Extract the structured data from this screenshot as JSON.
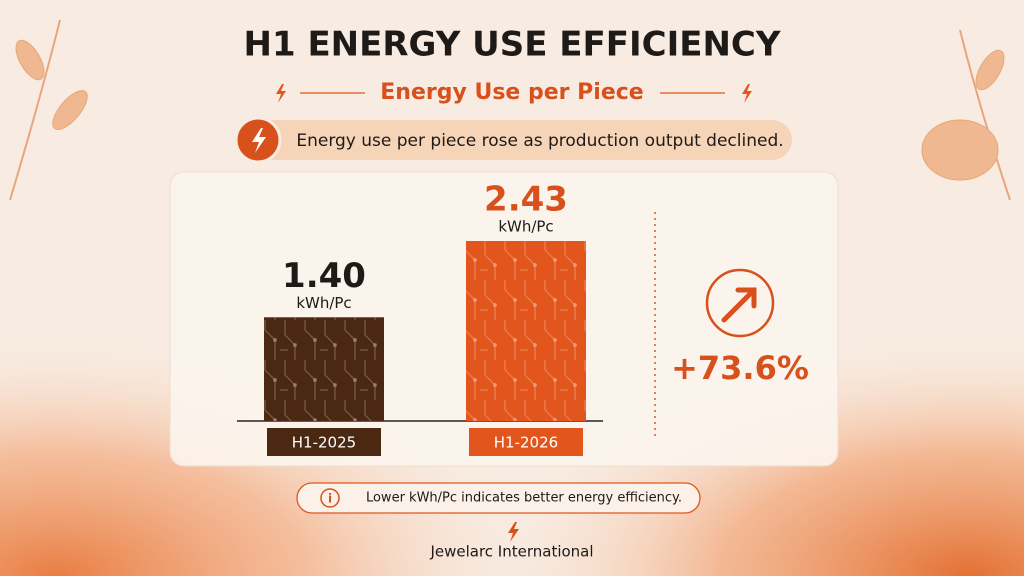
{
  "chart_data": {
    "type": "bar",
    "title": "H1 ENERGY USE EFFICIENCY",
    "subtitle": "Energy Use per Piece",
    "headline": "Energy use per piece rose as production output declined.",
    "categories": [
      "H1-2025",
      "H1-2026"
    ],
    "values": [
      1.4,
      2.43
    ],
    "value_labels": [
      "1.40",
      "2.43"
    ],
    "unit": "kWh/Pc",
    "colors": [
      "#4a2812",
      "#e2561d"
    ],
    "change_label": "+73.6%",
    "note": "Lower kWh/Pc indicates better energy efficiency.",
    "footer": "Jewelarc International"
  }
}
